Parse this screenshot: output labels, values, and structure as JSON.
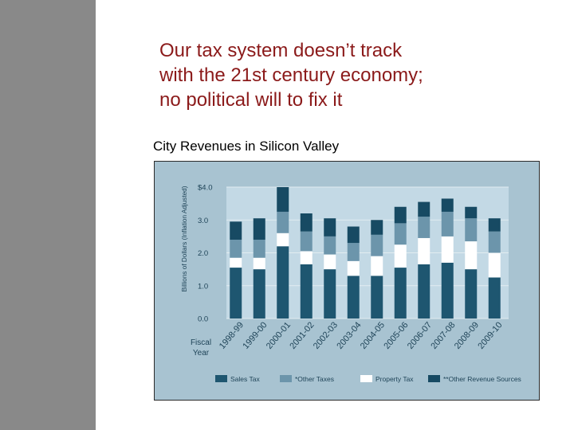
{
  "slide": {
    "title_lines": [
      "Our tax system doesn’t track",
      "with the 21st century economy;",
      "no political will to fix it"
    ],
    "subtitle": "City Revenues in Silicon Valley"
  },
  "chart_data": {
    "type": "bar",
    "stacked": true,
    "ylabel": "Billions of Dollars (Inflation Adjusted)",
    "xlabel": "Fiscal Year",
    "ylim": [
      0,
      4.0
    ],
    "yticks": [
      "0.0",
      "1.0",
      "2.0",
      "3.0",
      "$4.0"
    ],
    "categories": [
      "1998-99",
      "1999-00",
      "2000-01",
      "2001-02",
      "2002-03",
      "2003-04",
      "2004-05",
      "2005-06",
      "2006-07",
      "2007-08",
      "2008-09",
      "2009-10"
    ],
    "series": [
      {
        "name": "Sales Tax",
        "color": "#1e5670",
        "values": [
          1.55,
          1.5,
          2.2,
          1.65,
          1.5,
          1.3,
          1.3,
          1.55,
          1.65,
          1.7,
          1.5,
          1.25
        ]
      },
      {
        "name": "Property Tax",
        "color": "#ffffff",
        "values": [
          0.3,
          0.35,
          0.4,
          0.4,
          0.45,
          0.45,
          0.6,
          0.7,
          0.8,
          0.8,
          0.85,
          0.75
        ]
      },
      {
        "name": "*Other Taxes",
        "color": "#6c95ab",
        "values": [
          0.55,
          0.55,
          0.65,
          0.6,
          0.55,
          0.55,
          0.65,
          0.65,
          0.65,
          0.75,
          0.7,
          0.65
        ]
      },
      {
        "name": "**Other Revenue Sources",
        "color": "#174a63",
        "values": [
          0.55,
          0.65,
          0.75,
          0.55,
          0.55,
          0.5,
          0.45,
          0.5,
          0.45,
          0.4,
          0.35,
          0.4
        ]
      }
    ],
    "legend_order": [
      "Sales Tax",
      "*Other Taxes",
      "Property Tax",
      "**Other Revenue Sources"
    ],
    "legend_position": "bottom",
    "grid": true,
    "colors": {
      "plot_background": "#c3d9e5",
      "frame_background": "#a8c3d1",
      "gridline": "#e2ecf1",
      "text": "#1f4458"
    }
  }
}
